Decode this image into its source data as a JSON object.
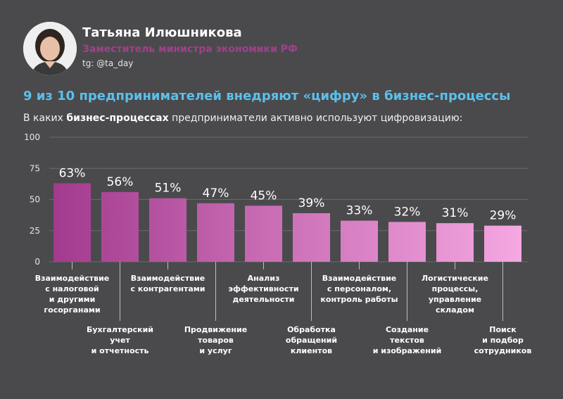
{
  "header": {
    "name": "Татьяна Илюшникова",
    "role": "Заместитель министра экономики РФ",
    "handle": "tg: @ta_day"
  },
  "title": "9 из 10 предпринимателей внедряют «цифру» в бизнес-процессы",
  "subtitle": {
    "before": "В каких ",
    "bold": "бизнес-процессах",
    "after": " предприниматели активно используют цифровизацию:"
  },
  "colors": {
    "background": "#4a4a4c",
    "title": "#5bc0ec",
    "role": "#a0408c",
    "bar_start": "#a33a8e",
    "bar_end": "#f5a8e2"
  },
  "chart_data": {
    "type": "bar",
    "ylim": [
      0,
      100
    ],
    "yticks": [
      0,
      25,
      50,
      75,
      100
    ],
    "grid": true,
    "categories": [
      [
        "Взаимодействие",
        "с налоговой",
        "и другими",
        "госорганами"
      ],
      [
        "Бухгалтерский",
        "учет",
        "и отчетность"
      ],
      [
        "Взаимодействие",
        "с контрагентами"
      ],
      [
        "Продвижение",
        "товаров",
        "и услуг"
      ],
      [
        "Анализ",
        "эффективности",
        "деятельности"
      ],
      [
        "Обработка",
        "обращений",
        "клиентов"
      ],
      [
        "Взаимодействие",
        "с персоналом,",
        "контроль работы"
      ],
      [
        "Создание",
        "текстов",
        "и изображений"
      ],
      [
        "Логистические",
        "процессы,",
        "управление",
        "складом"
      ],
      [
        "Поиск",
        "и подбор",
        "сотрудников"
      ]
    ],
    "values": [
      63,
      56,
      51,
      47,
      45,
      39,
      33,
      32,
      31,
      29
    ],
    "value_labels": [
      "63%",
      "56%",
      "51%",
      "47%",
      "45%",
      "39%",
      "33%",
      "32%",
      "31%",
      "29%"
    ]
  }
}
